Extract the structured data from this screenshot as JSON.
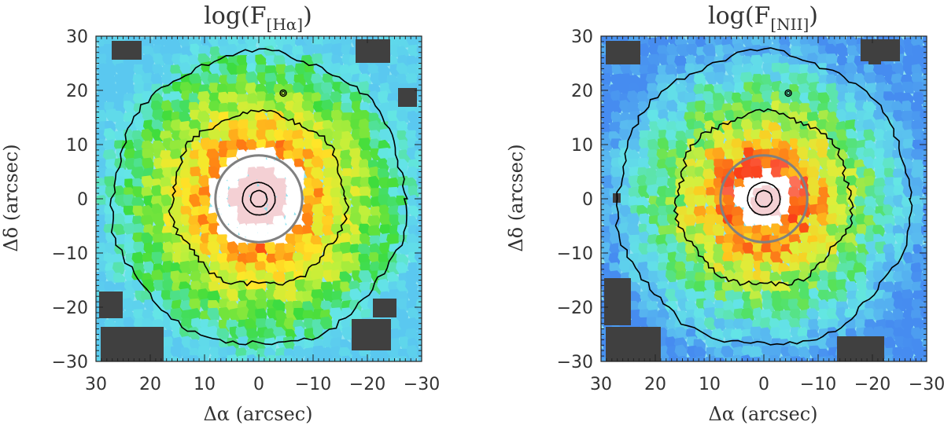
{
  "chart_data": [
    {
      "type": "heatmap",
      "title": "log(F[Hα])",
      "title_main": "log(F",
      "title_sub": "[Hα]",
      "title_close": ")",
      "xlabel": "Δα (arcsec)",
      "ylabel": "Δδ (arcsec)",
      "xlim": [
        30,
        -30
      ],
      "ylim": [
        -30,
        30
      ],
      "xticks": [
        30,
        20,
        10,
        0,
        -10,
        -20,
        -30
      ],
      "yticks": [
        -30,
        -20,
        -10,
        0,
        10,
        20,
        30
      ],
      "inner_saturation_radius": 9,
      "grey_circle_radius": 8,
      "contour_radii": [
        1.5,
        3,
        16,
        27
      ]
    },
    {
      "type": "heatmap",
      "title": "log(F[NII])",
      "title_main": "log(F",
      "title_sub": "[NII]",
      "title_close": ")",
      "xlabel": "Δα (arcsec)",
      "ylabel": "Δδ (arcsec)",
      "xlim": [
        30,
        -30
      ],
      "ylim": [
        -30,
        30
      ],
      "xticks": [
        30,
        20,
        10,
        0,
        -10,
        -20,
        -30
      ],
      "yticks": [
        -30,
        -20,
        -10,
        0,
        10,
        20,
        30
      ],
      "inner_saturation_radius": 5,
      "grey_circle_radius": 8,
      "contour_radii": [
        1.5,
        3,
        16,
        27
      ]
    }
  ],
  "colors": {
    "grey_circle": "#808080",
    "contour": "#000000",
    "masked": "#404040"
  }
}
